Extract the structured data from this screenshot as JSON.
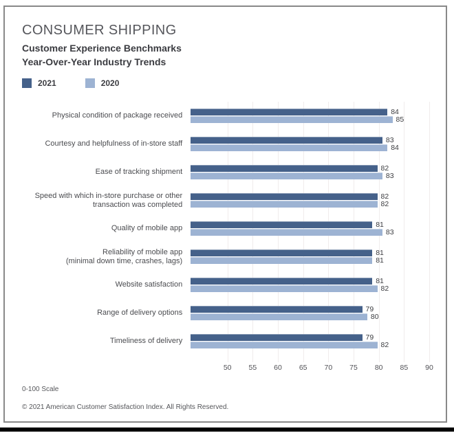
{
  "header": {
    "title": "CONSUMER SHIPPING",
    "subtitle_line1": "Customer Experience Benchmarks",
    "subtitle_line2": "Year-Over-Year Industry Trends"
  },
  "legend": [
    {
      "label": "2021",
      "color": "#45618a"
    },
    {
      "label": "2020",
      "color": "#9db3d3"
    }
  ],
  "chart_data": {
    "type": "bar",
    "orientation": "horizontal",
    "title": "Consumer Shipping — Customer Experience Benchmarks Year-Over-Year Industry Trends",
    "categories": [
      [
        "Physical condition of package received"
      ],
      [
        "Courtesy and helpfulness of in-store staff"
      ],
      [
        "Ease of tracking shipment"
      ],
      [
        "Speed with which in-store purchase or other",
        "transaction was completed"
      ],
      [
        "Quality of mobile app"
      ],
      [
        "Reliability of mobile app",
        "(minimal down time, crashes, lags)"
      ],
      [
        "Website satisfaction"
      ],
      [
        "Range of delivery options"
      ],
      [
        "Timeliness of delivery"
      ]
    ],
    "series": [
      {
        "name": "2021",
        "color": "#45618a",
        "values": [
          84,
          83,
          82,
          82,
          81,
          81,
          81,
          79,
          79
        ]
      },
      {
        "name": "2020",
        "color": "#9db3d3",
        "values": [
          85,
          84,
          83,
          82,
          83,
          81,
          82,
          80,
          82
        ]
      }
    ],
    "xlim": [
      45,
      90
    ],
    "xticks": [
      50,
      55,
      60,
      65,
      70,
      75,
      80,
      85,
      90
    ],
    "grid": true,
    "value_labels": true,
    "legend_position": "top-left",
    "gridline_color": "#f0ecec"
  },
  "footer": {
    "scale_note": "0-100 Scale",
    "copyright": "© 2021 American Customer Satisfaction Index. All Rights Reserved."
  }
}
